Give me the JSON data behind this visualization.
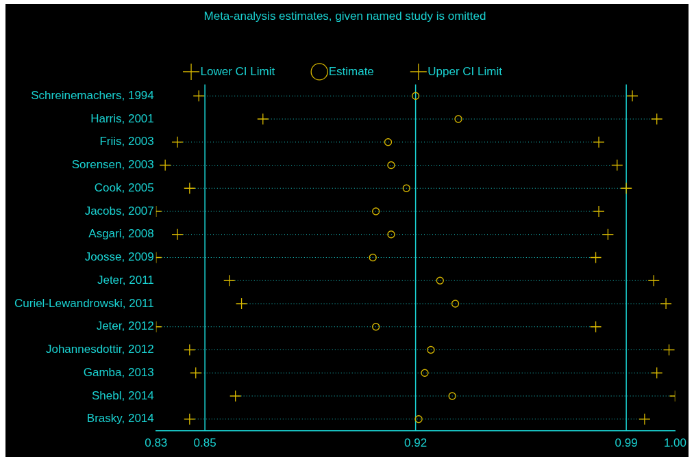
{
  "chart_data": {
    "type": "scatter",
    "title": "Meta-analysis estimates, given named study is omitted",
    "categories": [
      "Schreinemachers, 1994",
      "Harris, 2001",
      "Friis, 2003",
      "Sorensen, 2003",
      "Cook, 2005",
      "Jacobs, 2007",
      "Asgari, 2008",
      "Joosse, 2009",
      "Jeter, 2011",
      "Curiel-Lewandrowski, 2011",
      "Jeter, 2012",
      "Johannesdottir, 2012",
      "Gamba, 2013",
      "Shebl, 2014",
      "Brasky, 2014"
    ],
    "orientation": "horizontal",
    "series": [
      {
        "name": "Lower CI Limit",
        "color": "#d8b800",
        "marker": "cross",
        "values": [
          0.848,
          0.869,
          0.841,
          0.837,
          0.845,
          0.834,
          0.841,
          0.834,
          0.858,
          0.862,
          0.834,
          0.845,
          0.847,
          0.86,
          0.845
        ]
      },
      {
        "name": "Estimate",
        "color": "#d8b800",
        "marker": "circle",
        "values": [
          0.919,
          0.933,
          0.91,
          0.911,
          0.916,
          0.906,
          0.911,
          0.905,
          0.927,
          0.932,
          0.906,
          0.924,
          0.922,
          0.931,
          0.92
        ]
      },
      {
        "name": "Upper CI Limit",
        "color": "#d8b800",
        "marker": "cross",
        "values": [
          0.99,
          0.998,
          0.979,
          0.985,
          0.988,
          0.979,
          0.982,
          0.978,
          0.997,
          1.001,
          0.978,
          1.002,
          0.998,
          1.004,
          0.994
        ]
      }
    ],
    "xlim": [
      0.834,
      1.004
    ],
    "xticks": [
      {
        "value": 0.834,
        "label": "0.83"
      },
      {
        "value": 0.85,
        "label": "0.85"
      },
      {
        "value": 0.919,
        "label": "0.92"
      },
      {
        "value": 0.988,
        "label": "0.99"
      },
      {
        "value": 1.004,
        "label": "1.00"
      }
    ],
    "ref_lines": [
      {
        "axis": "x",
        "value": 0.85,
        "color": "#1ad1d1",
        "line_style": "solid"
      },
      {
        "axis": "x",
        "value": 0.919,
        "color": "#1ad1d1",
        "line_style": "solid"
      },
      {
        "axis": "x",
        "value": 0.988,
        "color": "#1ad1d1",
        "line_style": "solid"
      }
    ],
    "grid": false,
    "legend": "top"
  }
}
